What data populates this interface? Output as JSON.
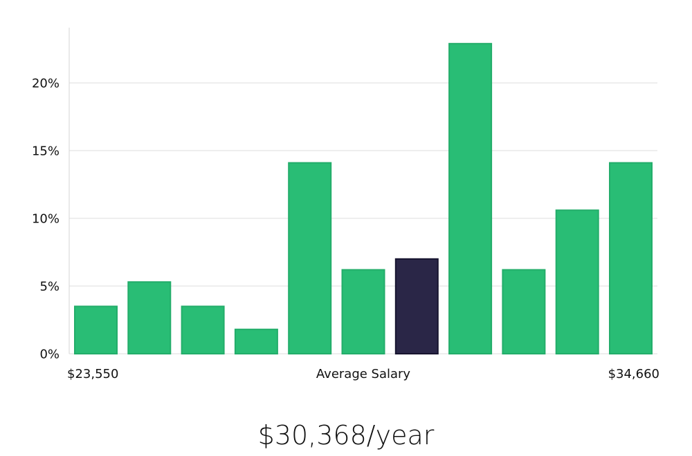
{
  "chart_data": {
    "type": "bar",
    "title": "",
    "xlabel": "",
    "ylabel": "",
    "ylim": [
      0,
      24
    ],
    "yticks": [
      0,
      5,
      10,
      15,
      20
    ],
    "ytick_labels": [
      "0%",
      "5%",
      "10%",
      "15%",
      "20%"
    ],
    "grid": true,
    "values": [
      3.5,
      5.3,
      3.5,
      1.8,
      14.1,
      6.2,
      7.0,
      22.9,
      6.2,
      10.6,
      14.1
    ],
    "highlight_index": 6,
    "x_labels": {
      "left": "$23,550",
      "center": "Average Salary",
      "right": "$34,660"
    }
  },
  "colors": {
    "bar": "#29bd75",
    "bar_stroke": "#23ad6a",
    "highlight": "#2a2647",
    "highlight_stroke": "#17142f"
  },
  "summary": {
    "average_salary": "$30,368/year"
  }
}
